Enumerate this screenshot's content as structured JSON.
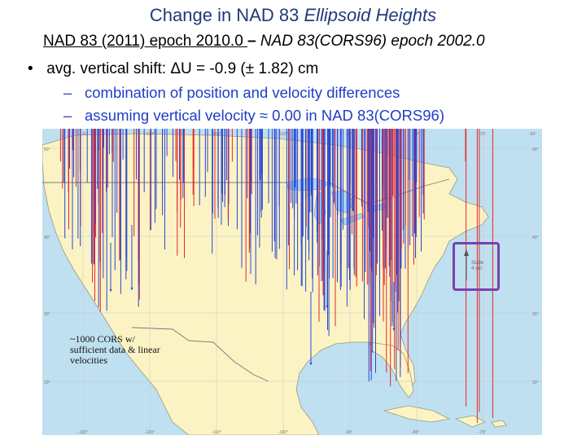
{
  "title": {
    "main": "Change in NAD 83 ",
    "italic": "Ellipsoid Heights"
  },
  "subtitle": {
    "left": "NAD 83 (2011) epoch 2010.0 ",
    "sep": " – ",
    "right": "NAD 83(CORS96) epoch 2002.0"
  },
  "bullet": {
    "label": "avg. vertical shift:",
    "value": "ΔU = -0.9 (± 1.82) cm"
  },
  "subitems": [
    "combination of position and velocity differences",
    "assuming vertical velocity ≈ 0.00 in NAD 83(CORS96)"
  ],
  "map": {
    "note": "~1000 CORS w/ sufficient data & linear velocities",
    "scale_label": "Scale",
    "scale_value": "4 cm",
    "lon_ticks": [
      "-130°",
      "-120°",
      "-110°",
      "-100°",
      "-90°",
      "-80°",
      "-70°",
      "-60°"
    ],
    "lat_ticks": [
      "50°",
      "40°",
      "30°",
      "20°"
    ],
    "colors": {
      "ocean": "#bfe0f0",
      "land": "#fbf3c4",
      "up": "#e8262a",
      "down": "#2a47d6",
      "lakes": "#a9d5ec",
      "border": "#7a7a7a"
    }
  }
}
